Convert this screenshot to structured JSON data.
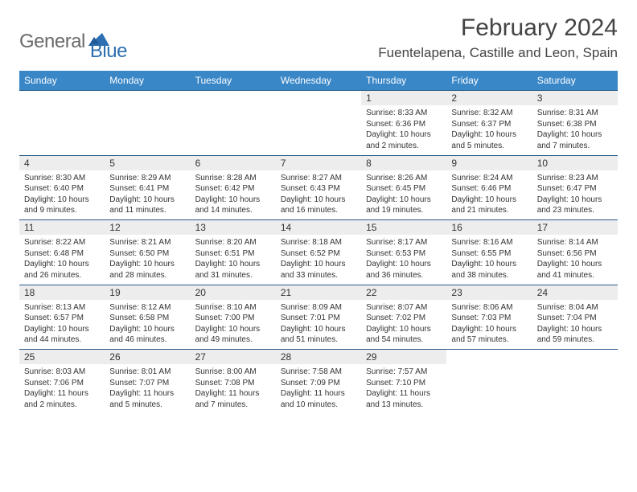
{
  "logo": {
    "part1": "General",
    "part2": "Blue"
  },
  "title": "February 2024",
  "location": "Fuentelapena, Castille and Leon, Spain",
  "colors": {
    "header_bg": "#3a87c8",
    "row_border": "#2a5a8a",
    "daynum_bg": "#ededed",
    "logo_blue": "#2d6fb0",
    "logo_gray": "#6a6a6a"
  },
  "weekdays": [
    "Sunday",
    "Monday",
    "Tuesday",
    "Wednesday",
    "Thursday",
    "Friday",
    "Saturday"
  ],
  "weeks": [
    [
      null,
      null,
      null,
      null,
      {
        "n": "1",
        "sr": "8:33 AM",
        "ss": "6:36 PM",
        "dl": "10 hours and 2 minutes."
      },
      {
        "n": "2",
        "sr": "8:32 AM",
        "ss": "6:37 PM",
        "dl": "10 hours and 5 minutes."
      },
      {
        "n": "3",
        "sr": "8:31 AM",
        "ss": "6:38 PM",
        "dl": "10 hours and 7 minutes."
      }
    ],
    [
      {
        "n": "4",
        "sr": "8:30 AM",
        "ss": "6:40 PM",
        "dl": "10 hours and 9 minutes."
      },
      {
        "n": "5",
        "sr": "8:29 AM",
        "ss": "6:41 PM",
        "dl": "10 hours and 11 minutes."
      },
      {
        "n": "6",
        "sr": "8:28 AM",
        "ss": "6:42 PM",
        "dl": "10 hours and 14 minutes."
      },
      {
        "n": "7",
        "sr": "8:27 AM",
        "ss": "6:43 PM",
        "dl": "10 hours and 16 minutes."
      },
      {
        "n": "8",
        "sr": "8:26 AM",
        "ss": "6:45 PM",
        "dl": "10 hours and 19 minutes."
      },
      {
        "n": "9",
        "sr": "8:24 AM",
        "ss": "6:46 PM",
        "dl": "10 hours and 21 minutes."
      },
      {
        "n": "10",
        "sr": "8:23 AM",
        "ss": "6:47 PM",
        "dl": "10 hours and 23 minutes."
      }
    ],
    [
      {
        "n": "11",
        "sr": "8:22 AM",
        "ss": "6:48 PM",
        "dl": "10 hours and 26 minutes."
      },
      {
        "n": "12",
        "sr": "8:21 AM",
        "ss": "6:50 PM",
        "dl": "10 hours and 28 minutes."
      },
      {
        "n": "13",
        "sr": "8:20 AM",
        "ss": "6:51 PM",
        "dl": "10 hours and 31 minutes."
      },
      {
        "n": "14",
        "sr": "8:18 AM",
        "ss": "6:52 PM",
        "dl": "10 hours and 33 minutes."
      },
      {
        "n": "15",
        "sr": "8:17 AM",
        "ss": "6:53 PM",
        "dl": "10 hours and 36 minutes."
      },
      {
        "n": "16",
        "sr": "8:16 AM",
        "ss": "6:55 PM",
        "dl": "10 hours and 38 minutes."
      },
      {
        "n": "17",
        "sr": "8:14 AM",
        "ss": "6:56 PM",
        "dl": "10 hours and 41 minutes."
      }
    ],
    [
      {
        "n": "18",
        "sr": "8:13 AM",
        "ss": "6:57 PM",
        "dl": "10 hours and 44 minutes."
      },
      {
        "n": "19",
        "sr": "8:12 AM",
        "ss": "6:58 PM",
        "dl": "10 hours and 46 minutes."
      },
      {
        "n": "20",
        "sr": "8:10 AM",
        "ss": "7:00 PM",
        "dl": "10 hours and 49 minutes."
      },
      {
        "n": "21",
        "sr": "8:09 AM",
        "ss": "7:01 PM",
        "dl": "10 hours and 51 minutes."
      },
      {
        "n": "22",
        "sr": "8:07 AM",
        "ss": "7:02 PM",
        "dl": "10 hours and 54 minutes."
      },
      {
        "n": "23",
        "sr": "8:06 AM",
        "ss": "7:03 PM",
        "dl": "10 hours and 57 minutes."
      },
      {
        "n": "24",
        "sr": "8:04 AM",
        "ss": "7:04 PM",
        "dl": "10 hours and 59 minutes."
      }
    ],
    [
      {
        "n": "25",
        "sr": "8:03 AM",
        "ss": "7:06 PM",
        "dl": "11 hours and 2 minutes."
      },
      {
        "n": "26",
        "sr": "8:01 AM",
        "ss": "7:07 PM",
        "dl": "11 hours and 5 minutes."
      },
      {
        "n": "27",
        "sr": "8:00 AM",
        "ss": "7:08 PM",
        "dl": "11 hours and 7 minutes."
      },
      {
        "n": "28",
        "sr": "7:58 AM",
        "ss": "7:09 PM",
        "dl": "11 hours and 10 minutes."
      },
      {
        "n": "29",
        "sr": "7:57 AM",
        "ss": "7:10 PM",
        "dl": "11 hours and 13 minutes."
      },
      null,
      null
    ]
  ],
  "labels": {
    "sunrise": "Sunrise: ",
    "sunset": "Sunset: ",
    "daylight": "Daylight: "
  }
}
